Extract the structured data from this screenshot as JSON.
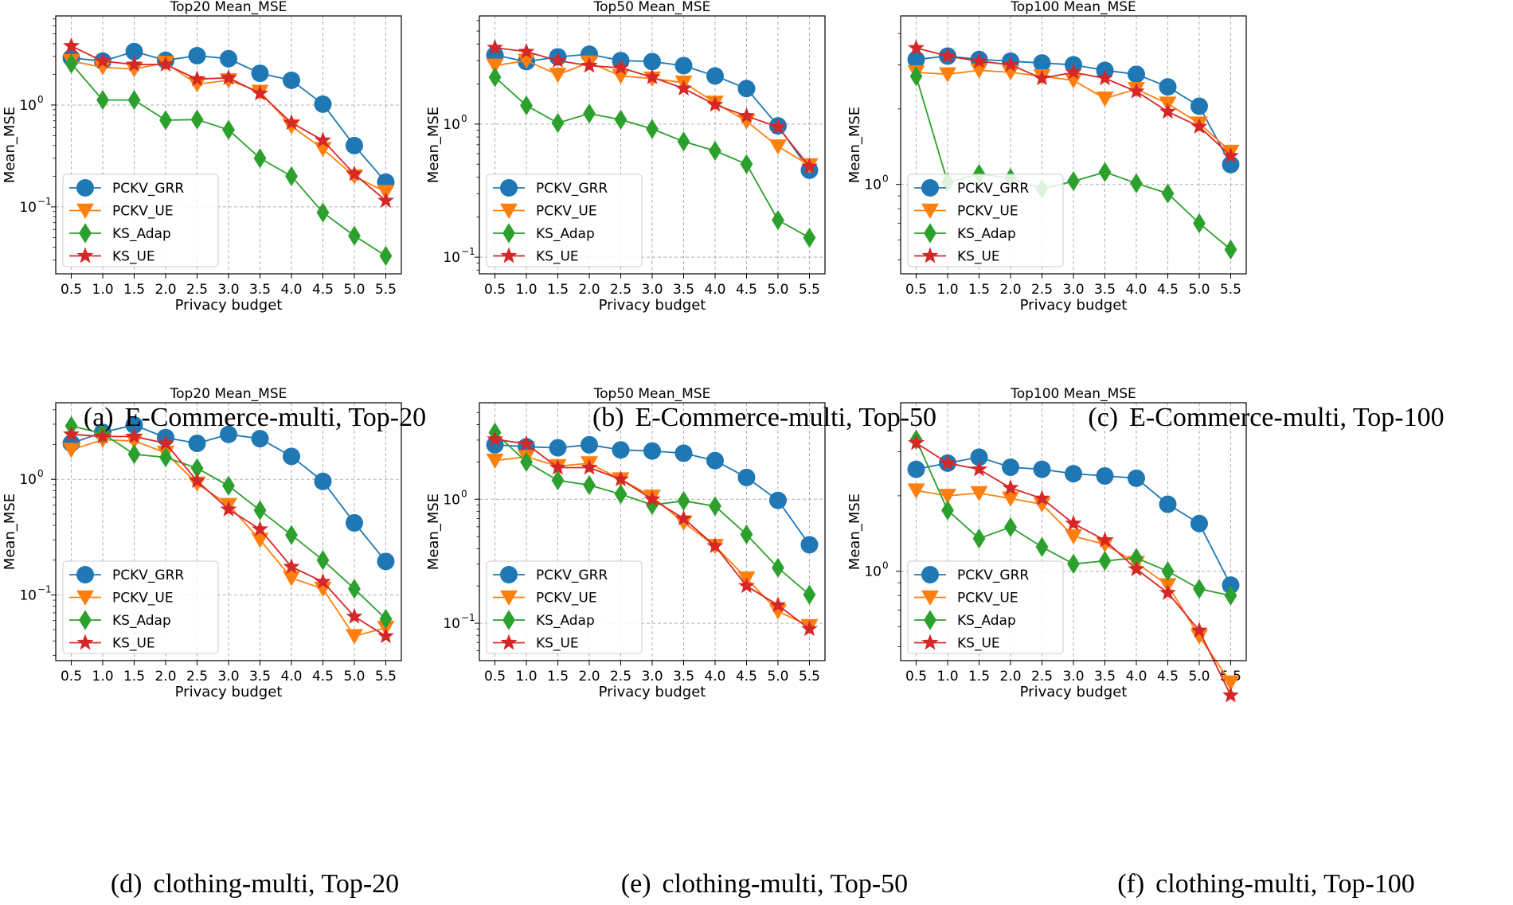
{
  "figure": {
    "captions": [
      {
        "label": "(a)",
        "text": "E-Commerce-multi, Top-20"
      },
      {
        "label": "(b)",
        "text": "E-Commerce-multi, Top-50"
      },
      {
        "label": "(c)",
        "text": "E-Commerce-multi, Top-100"
      },
      {
        "label": "(d)",
        "text": "clothing-multi, Top-20"
      },
      {
        "label": "(e)",
        "text": "clothing-multi, Top-50"
      },
      {
        "label": "(f)",
        "text": "clothing-multi, Top-100"
      }
    ]
  },
  "colors": {
    "PCKV_GRR": "#1f77b4",
    "PCKV_UE": "#ff7f0e",
    "KS_Adap": "#2ca02c",
    "KS_UE": "#d62728"
  },
  "chart_data": [
    {
      "type": "line",
      "title": "Top20 Mean_MSE",
      "xlabel": "Privacy budget",
      "ylabel": "Mean_MSE",
      "yscale": "log",
      "ylim": [
        0.022,
        7.5
      ],
      "grid": true,
      "legend": "lower-left",
      "x": [
        0.5,
        1.0,
        1.5,
        2.0,
        2.5,
        3.0,
        3.5,
        4.0,
        4.5,
        5.0,
        5.5
      ],
      "x_tick_labels": [
        "0.5",
        "1.0",
        "1.5",
        "2.0",
        "2.5",
        "3.0",
        "3.5",
        "4.0",
        "4.5",
        "5.0",
        "5.5"
      ],
      "y_ticks": [
        {
          "value": 1,
          "base": "10",
          "exp": "0"
        },
        {
          "value": 0.1,
          "base": "10",
          "exp": "−1"
        }
      ],
      "series": [
        {
          "name": "PCKV_GRR",
          "marker": "circle",
          "values": [
            2.9,
            2.7,
            3.35,
            2.75,
            3.05,
            2.85,
            2.05,
            1.75,
            1.02,
            0.4,
            0.175
          ]
        },
        {
          "name": "PCKV_UE",
          "marker": "triangle-down",
          "values": [
            2.7,
            2.35,
            2.25,
            2.6,
            1.6,
            1.75,
            1.35,
            0.62,
            0.37,
            0.2,
            0.14
          ]
        },
        {
          "name": "KS_Adap",
          "marker": "diamond",
          "values": [
            2.55,
            1.12,
            1.12,
            0.71,
            0.72,
            0.57,
            0.3,
            0.2,
            0.088,
            0.052,
            0.033
          ]
        },
        {
          "name": "KS_UE",
          "marker": "star",
          "values": [
            3.8,
            2.7,
            2.5,
            2.5,
            1.8,
            1.85,
            1.3,
            0.67,
            0.45,
            0.21,
            0.115
          ]
        }
      ]
    },
    {
      "type": "line",
      "title": "Top50 Mean_MSE",
      "xlabel": "Privacy budget",
      "ylabel": "Mean_MSE",
      "yscale": "log",
      "ylim": [
        0.075,
        6.5
      ],
      "grid": true,
      "legend": "lower-left",
      "x": [
        0.5,
        1.0,
        1.5,
        2.0,
        2.5,
        3.0,
        3.5,
        4.0,
        4.5,
        5.0,
        5.5
      ],
      "x_tick_labels": [
        "0.5",
        "1.0",
        "1.5",
        "2.0",
        "2.5",
        "3.0",
        "3.5",
        "4.0",
        "4.5",
        "5.0",
        "5.5"
      ],
      "y_ticks": [
        {
          "value": 1,
          "base": "10",
          "exp": "0"
        },
        {
          "value": 0.1,
          "base": "10",
          "exp": "−1"
        }
      ],
      "series": [
        {
          "name": "PCKV_GRR",
          "marker": "circle",
          "values": [
            3.3,
            2.95,
            3.2,
            3.35,
            3.0,
            2.95,
            2.75,
            2.3,
            1.85,
            0.97,
            0.45
          ]
        },
        {
          "name": "PCKV_UE",
          "marker": "triangle-down",
          "values": [
            2.75,
            3.0,
            2.35,
            2.9,
            2.3,
            2.2,
            2.05,
            1.45,
            1.05,
            0.68,
            0.49
          ]
        },
        {
          "name": "KS_Adap",
          "marker": "diamond",
          "values": [
            2.25,
            1.38,
            1.02,
            1.2,
            1.08,
            0.92,
            0.74,
            0.63,
            0.5,
            0.19,
            0.14
          ]
        },
        {
          "name": "KS_UE",
          "marker": "star",
          "values": [
            3.75,
            3.5,
            3.0,
            2.75,
            2.65,
            2.25,
            1.85,
            1.4,
            1.15,
            0.95,
            0.48
          ]
        }
      ]
    },
    {
      "type": "line",
      "title": "Top100 Mean_MSE",
      "xlabel": "Privacy budget",
      "ylabel": "Mean_MSE",
      "yscale": "log",
      "ylim": [
        0.44,
        4.7
      ],
      "grid": true,
      "legend": "lower-left",
      "x": [
        0.5,
        1.0,
        1.5,
        2.0,
        2.5,
        3.0,
        3.5,
        4.0,
        4.5,
        5.0,
        5.5
      ],
      "x_tick_labels": [
        "0.5",
        "1.0",
        "1.5",
        "2.0",
        "2.5",
        "3.0",
        "3.5",
        "4.0",
        "4.5",
        "5.0",
        "5.5"
      ],
      "y_ticks": [
        {
          "value": 1,
          "base": "10",
          "exp": "0"
        }
      ],
      "series": [
        {
          "name": "PCKV_GRR",
          "marker": "circle",
          "values": [
            3.15,
            3.25,
            3.15,
            3.1,
            3.05,
            3.0,
            2.85,
            2.75,
            2.45,
            2.05,
            1.2
          ]
        },
        {
          "name": "PCKV_UE",
          "marker": "triangle-down",
          "values": [
            2.8,
            2.75,
            2.85,
            2.8,
            2.7,
            2.6,
            2.2,
            2.4,
            2.1,
            1.75,
            1.35
          ]
        },
        {
          "name": "KS_Adap",
          "marker": "diamond",
          "values": [
            2.7,
            1.02,
            1.1,
            1.06,
            0.96,
            1.03,
            1.12,
            1.01,
            0.92,
            0.7,
            0.55
          ]
        },
        {
          "name": "KS_UE",
          "marker": "star",
          "values": [
            3.5,
            3.25,
            3.1,
            3.0,
            2.65,
            2.8,
            2.65,
            2.35,
            1.95,
            1.7,
            1.3
          ]
        }
      ]
    },
    {
      "type": "line",
      "title": "Top20 Mean_MSE",
      "xlabel": "Privacy budget",
      "ylabel": "Mean_MSE",
      "yscale": "log",
      "ylim": [
        0.027,
        4.6
      ],
      "grid": true,
      "legend": "lower-left",
      "x": [
        0.5,
        1.0,
        1.5,
        2.0,
        2.5,
        3.0,
        3.5,
        4.0,
        4.5,
        5.0,
        5.5
      ],
      "x_tick_labels": [
        "0.5",
        "1.0",
        "1.5",
        "2.0",
        "2.5",
        "3.0",
        "3.5",
        "4.0",
        "4.5",
        "5.0",
        "5.5"
      ],
      "y_ticks": [
        {
          "value": 1,
          "base": "10",
          "exp": "0"
        },
        {
          "value": 0.1,
          "base": "10",
          "exp": "−1"
        }
      ],
      "series": [
        {
          "name": "PCKV_GRR",
          "marker": "circle",
          "values": [
            2.05,
            2.55,
            2.95,
            2.3,
            2.05,
            2.45,
            2.25,
            1.58,
            0.96,
            0.42,
            0.195
          ]
        },
        {
          "name": "PCKV_UE",
          "marker": "triangle-down",
          "values": [
            1.8,
            2.2,
            2.15,
            1.7,
            0.92,
            0.6,
            0.3,
            0.14,
            0.113,
            0.044,
            0.052
          ]
        },
        {
          "name": "KS_Adap",
          "marker": "diamond",
          "values": [
            2.9,
            2.5,
            1.65,
            1.55,
            1.25,
            0.88,
            0.54,
            0.33,
            0.2,
            0.113,
            0.062
          ]
        },
        {
          "name": "KS_UE",
          "marker": "star",
          "values": [
            2.45,
            2.35,
            2.35,
            2.05,
            0.97,
            0.55,
            0.37,
            0.175,
            0.13,
            0.065,
            0.044
          ]
        }
      ]
    },
    {
      "type": "line",
      "title": "Top50 Mean_MSE",
      "xlabel": "Privacy budget",
      "ylabel": "Mean_MSE",
      "yscale": "log",
      "ylim": [
        0.05,
        6.0
      ],
      "grid": true,
      "legend": "lower-left",
      "x": [
        0.5,
        1.0,
        1.5,
        2.0,
        2.5,
        3.0,
        3.5,
        4.0,
        4.5,
        5.0,
        5.5
      ],
      "x_tick_labels": [
        "0.5",
        "1.0",
        "1.5",
        "2.0",
        "2.5",
        "3.0",
        "3.5",
        "4.0",
        "4.5",
        "5.0",
        "5.5"
      ],
      "y_ticks": [
        {
          "value": 1,
          "base": "10",
          "exp": "0"
        },
        {
          "value": 0.1,
          "base": "10",
          "exp": "−1"
        }
      ],
      "series": [
        {
          "name": "PCKV_GRR",
          "marker": "circle",
          "values": [
            2.75,
            2.65,
            2.6,
            2.75,
            2.5,
            2.45,
            2.35,
            2.05,
            1.5,
            0.98,
            0.43
          ]
        },
        {
          "name": "PCKV_UE",
          "marker": "triangle-down",
          "values": [
            2.05,
            2.2,
            1.85,
            1.95,
            1.45,
            1.05,
            0.65,
            0.42,
            0.23,
            0.125,
            0.095
          ]
        },
        {
          "name": "KS_Adap",
          "marker": "diamond",
          "values": [
            3.45,
            2.0,
            1.42,
            1.3,
            1.1,
            0.9,
            0.97,
            0.88,
            0.52,
            0.28,
            0.17
          ]
        },
        {
          "name": "KS_UE",
          "marker": "star",
          "values": [
            3.05,
            2.8,
            1.8,
            1.8,
            1.45,
            1.0,
            0.7,
            0.42,
            0.2,
            0.14,
            0.09
          ]
        }
      ]
    },
    {
      "type": "line",
      "title": "Top100 Mean_MSE",
      "xlabel": "Privacy budget",
      "ylabel": "Mean_MSE",
      "yscale": "log",
      "ylim": [
        0.44,
        4.7
      ],
      "grid": true,
      "legend": "lower-left",
      "x": [
        0.5,
        1.0,
        1.5,
        2.0,
        2.5,
        3.0,
        3.5,
        4.0,
        4.5,
        5.0,
        5.5
      ],
      "x_tick_labels": [
        "0.5",
        "1.0",
        "1.5",
        "2.0",
        "2.5",
        "3.0",
        "3.5",
        "4.0",
        "4.5",
        "5.0",
        "5.5"
      ],
      "y_ticks": [
        {
          "value": 1,
          "base": "10",
          "exp": "0"
        }
      ],
      "series": [
        {
          "name": "PCKV_GRR",
          "marker": "circle",
          "values": [
            2.55,
            2.7,
            2.85,
            2.6,
            2.55,
            2.45,
            2.4,
            2.35,
            1.85,
            1.55,
            0.88
          ]
        },
        {
          "name": "PCKV_UE",
          "marker": "triangle-down",
          "values": [
            2.1,
            2.0,
            2.05,
            1.95,
            1.85,
            1.38,
            1.28,
            1.08,
            0.88,
            0.55,
            0.36
          ]
        },
        {
          "name": "KS_Adap",
          "marker": "diamond",
          "values": [
            3.35,
            1.75,
            1.35,
            1.5,
            1.25,
            1.07,
            1.1,
            1.13,
            1.0,
            0.85,
            0.8
          ]
        },
        {
          "name": "KS_UE",
          "marker": "star",
          "values": [
            3.25,
            2.7,
            2.55,
            2.15,
            1.95,
            1.55,
            1.33,
            1.02,
            0.82,
            0.58,
            0.32
          ]
        }
      ]
    }
  ]
}
